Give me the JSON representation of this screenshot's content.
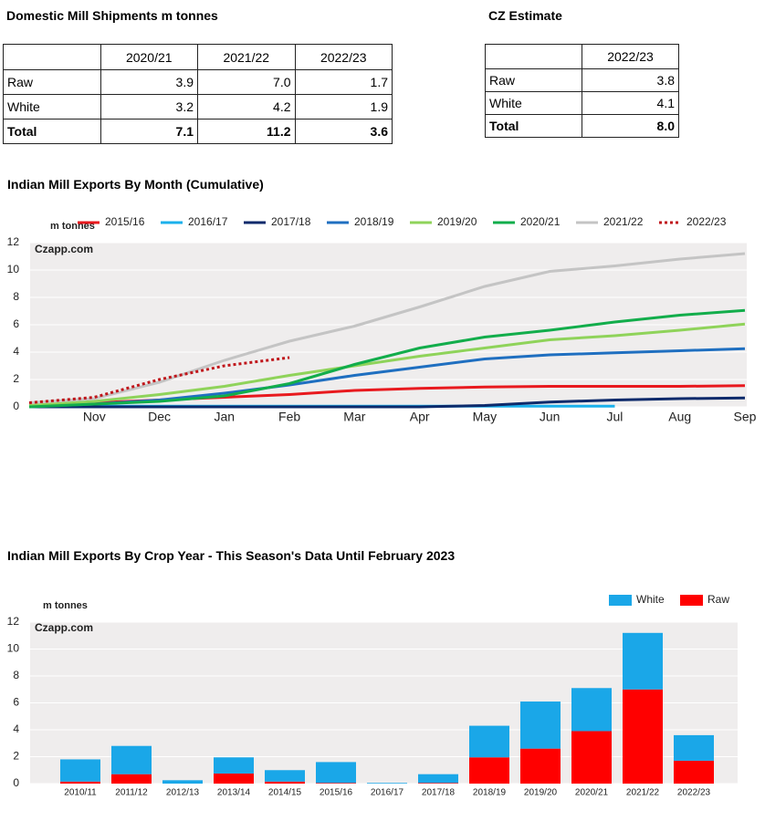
{
  "tables": [
    {
      "title": "Domestic Mill Shipments m tonnes",
      "columns": [
        "2020/21",
        "2021/22",
        "2022/23"
      ],
      "rows": [
        {
          "label": "Raw",
          "values": [
            "3.9",
            "7.0",
            "1.7"
          ]
        },
        {
          "label": "White",
          "values": [
            "3.2",
            "4.2",
            "1.9"
          ]
        },
        {
          "label": "Total",
          "values": [
            "7.1",
            "11.2",
            "3.6"
          ]
        }
      ]
    },
    {
      "title": "CZ Estimate",
      "columns": [
        "2022/23"
      ],
      "rows": [
        {
          "label": "Raw",
          "values": [
            "3.8"
          ]
        },
        {
          "label": "White",
          "values": [
            "4.1"
          ]
        },
        {
          "label": "Total",
          "values": [
            "8.0"
          ]
        }
      ]
    }
  ],
  "chart_data": [
    {
      "type": "line",
      "title": "Indian Mill Exports By Month (Cumulative)",
      "y_label": "m tonnes",
      "watermark": "Czapp.com",
      "categories": [
        null,
        "Nov",
        "Dec",
        "Jan",
        "Feb",
        "Mar",
        "Apr",
        "May",
        "Jun",
        "Jul",
        "Aug",
        "Sep"
      ],
      "ylim": [
        0,
        12
      ],
      "yticks": [
        0,
        2,
        4,
        6,
        8,
        10,
        12
      ],
      "grid": true,
      "series": [
        {
          "name": "2015/16",
          "color": "#e8191e",
          "values": [
            0.1,
            0.3,
            0.5,
            0.7,
            0.9,
            1.2,
            1.35,
            1.45,
            1.5,
            1.5,
            1.5,
            1.55
          ]
        },
        {
          "name": "2016/17",
          "color": "#1ab0ec",
          "values": [
            0,
            0.05,
            0.05,
            0.05,
            0.05,
            0.05,
            0.05,
            0.05,
            0.05,
            0.05,
            null,
            null
          ]
        },
        {
          "name": "2017/18",
          "color": "#0d2a6b",
          "values": [
            0,
            0,
            0,
            0,
            0,
            0,
            0,
            0.1,
            0.35,
            0.5,
            0.6,
            0.65
          ]
        },
        {
          "name": "2018/19",
          "color": "#1f6fc0",
          "values": [
            0,
            0.2,
            0.5,
            1.0,
            1.6,
            2.3,
            2.9,
            3.5,
            3.8,
            3.95,
            4.1,
            4.25
          ]
        },
        {
          "name": "2019/20",
          "color": "#8fd35a",
          "values": [
            0.1,
            0.4,
            0.9,
            1.5,
            2.3,
            3.0,
            3.7,
            4.3,
            4.9,
            5.2,
            5.6,
            6.05
          ]
        },
        {
          "name": "2020/21",
          "color": "#12ad4b",
          "values": [
            0,
            0.2,
            0.4,
            0.8,
            1.7,
            3.1,
            4.3,
            5.1,
            5.6,
            6.2,
            6.7,
            7.05
          ]
        },
        {
          "name": "2021/22",
          "color": "#c4c4c4",
          "values": [
            0.3,
            0.6,
            1.8,
            3.4,
            4.8,
            5.9,
            7.3,
            8.8,
            9.9,
            10.3,
            10.8,
            11.2
          ]
        },
        {
          "name": "2022/23",
          "color": "#c0161b",
          "dashed": true,
          "values": [
            0.3,
            0.7,
            2.0,
            3.0,
            3.6,
            null,
            null,
            null,
            null,
            null,
            null,
            null
          ]
        }
      ]
    },
    {
      "type": "bar",
      "title": "Indian Mill Exports By Crop Year - This Season's Data Until February 2023",
      "y_label": "m tonnes",
      "watermark": "Czapp.com",
      "categories": [
        "2010/11",
        "2011/12",
        "2012/13",
        "2013/14",
        "2014/15",
        "2015/16",
        "2016/17",
        "2017/18",
        "2018/19",
        "2019/20",
        "2020/21",
        "2021/22",
        "2022/23"
      ],
      "ylim": [
        0,
        12
      ],
      "yticks": [
        0,
        2,
        4,
        6,
        8,
        10,
        12
      ],
      "grid": true,
      "stacked": true,
      "series": [
        {
          "name": "White",
          "color": "#1aa7e8",
          "values": [
            1.65,
            2.1,
            0.25,
            1.2,
            0.85,
            1.55,
            0.05,
            0.65,
            2.35,
            3.5,
            3.2,
            4.2,
            1.9
          ]
        },
        {
          "name": "Raw",
          "color": "#ff0000",
          "values": [
            0.15,
            0.7,
            0,
            0.75,
            0.15,
            0.05,
            0,
            0.05,
            1.95,
            2.6,
            3.9,
            7.0,
            1.7
          ]
        }
      ]
    }
  ]
}
